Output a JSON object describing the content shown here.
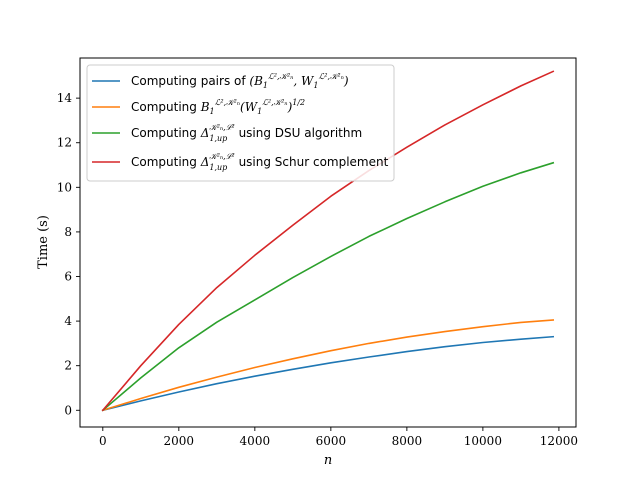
{
  "chart_data": {
    "type": "line",
    "xlabel": "n",
    "ylabel": "Time (s)",
    "xlim": [
      -600,
      12450
    ],
    "ylim": [
      -0.75,
      15.8
    ],
    "xticks": [
      0,
      2000,
      4000,
      6000,
      8000,
      10000,
      12000
    ],
    "yticks": [
      0,
      2,
      4,
      6,
      8,
      10,
      12,
      14
    ],
    "grid": false,
    "legend_position": "top-left",
    "x": [
      0,
      1000,
      2000,
      3000,
      4000,
      5000,
      6000,
      7000,
      8000,
      9000,
      10000,
      11000,
      11850
    ],
    "series": [
      {
        "name": "Computing pairs of (B1^{L²,K²n}, W1^{L²,K²n})",
        "legend_text": "Computing pairs of ",
        "color": "#1f77b4",
        "values": [
          0,
          0.42,
          0.82,
          1.19,
          1.53,
          1.84,
          2.13,
          2.39,
          2.63,
          2.85,
          3.04,
          3.19,
          3.3
        ]
      },
      {
        "name": "Computing B1^{L²,K²n}(W1^{L²,K²n})^{1/2}",
        "legend_text": "Computing ",
        "color": "#ff7f0e",
        "values": [
          0,
          0.53,
          1.03,
          1.49,
          1.92,
          2.31,
          2.67,
          3.0,
          3.28,
          3.53,
          3.75,
          3.94,
          4.05
        ]
      },
      {
        "name": "Computing Δ1,up^{K²n,L²} using DSU algorithm",
        "legend_text": "Computing ",
        "legend_suffix": " using DSU algorithm",
        "color": "#2ca02c",
        "values": [
          0,
          1.45,
          2.8,
          3.95,
          4.95,
          5.95,
          6.9,
          7.8,
          8.6,
          9.35,
          10.05,
          10.65,
          11.1
        ]
      },
      {
        "name": "Computing Δ1,up^{K²n,L²} using Schur complement",
        "legend_text": "Computing ",
        "legend_suffix": " using Schur complement",
        "color": "#d62728",
        "values": [
          0,
          2.0,
          3.85,
          5.5,
          6.95,
          8.3,
          9.6,
          10.75,
          11.8,
          12.8,
          13.7,
          14.55,
          15.2
        ]
      }
    ]
  }
}
